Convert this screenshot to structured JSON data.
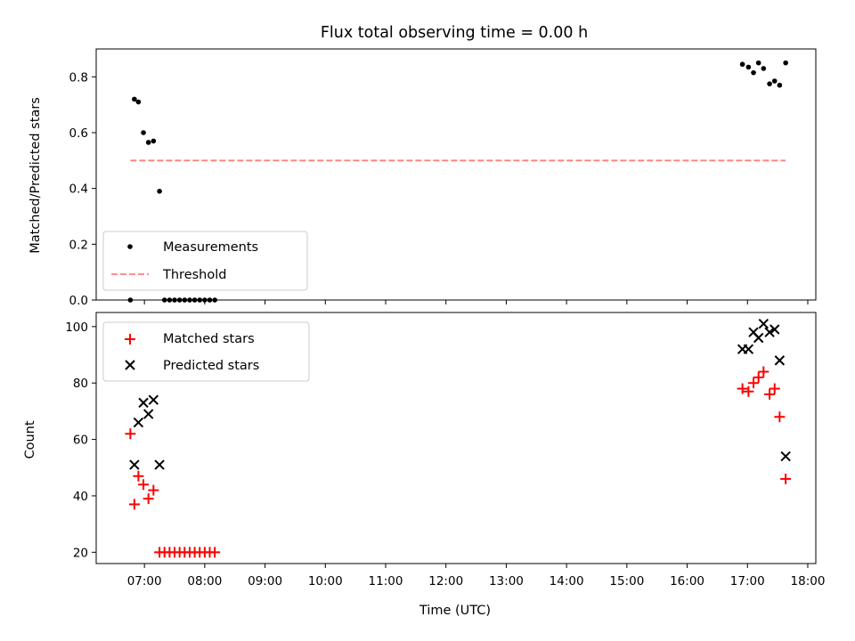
{
  "chart_data": [
    {
      "type": "scatter",
      "title": "Flux total observing time = 0.00 h",
      "ylabel": "Matched/Predicted stars",
      "xlabel": "",
      "xlim": [
        "06:12",
        "18:08"
      ],
      "ylim": [
        0,
        0.9
      ],
      "yticks": [
        0.0,
        0.2,
        0.4,
        0.6,
        0.8
      ],
      "ytick_labels": [
        "0.0",
        "0.2",
        "0.4",
        "0.6",
        "0.8"
      ],
      "legend_position": "lower-left",
      "series": [
        {
          "name": "Measurements",
          "marker": "dot",
          "color": "#000000",
          "points": [
            {
              "x": "06:46",
              "y": 0.0
            },
            {
              "x": "06:50",
              "y": 0.72
            },
            {
              "x": "06:54",
              "y": 0.71
            },
            {
              "x": "06:59",
              "y": 0.6
            },
            {
              "x": "07:04",
              "y": 0.565
            },
            {
              "x": "07:09",
              "y": 0.57
            },
            {
              "x": "07:15",
              "y": 0.39
            },
            {
              "x": "07:20",
              "y": 0.0
            },
            {
              "x": "07:25",
              "y": 0.0
            },
            {
              "x": "07:30",
              "y": 0.0
            },
            {
              "x": "07:35",
              "y": 0.0
            },
            {
              "x": "07:40",
              "y": 0.0
            },
            {
              "x": "07:45",
              "y": 0.0
            },
            {
              "x": "07:50",
              "y": 0.0
            },
            {
              "x": "07:55",
              "y": 0.0
            },
            {
              "x": "08:00",
              "y": 0.0
            },
            {
              "x": "08:05",
              "y": 0.0
            },
            {
              "x": "08:10",
              "y": 0.0
            },
            {
              "x": "16:55",
              "y": 0.845
            },
            {
              "x": "17:01",
              "y": 0.835
            },
            {
              "x": "17:06",
              "y": 0.815
            },
            {
              "x": "17:11",
              "y": 0.85
            },
            {
              "x": "17:16",
              "y": 0.83
            },
            {
              "x": "17:22",
              "y": 0.775
            },
            {
              "x": "17:27",
              "y": 0.785
            },
            {
              "x": "17:32",
              "y": 0.77
            },
            {
              "x": "17:38",
              "y": 0.85
            }
          ]
        },
        {
          "name": "Threshold",
          "marker": "dashed-line",
          "color": "#ff7f7f",
          "points": [
            {
              "x": "06:46",
              "y": 0.5
            },
            {
              "x": "17:38",
              "y": 0.5
            }
          ]
        }
      ]
    },
    {
      "type": "scatter",
      "title": "",
      "ylabel": "Count",
      "xlabel": "Time (UTC)",
      "xlim": [
        "06:12",
        "18:08"
      ],
      "ylim": [
        16,
        105
      ],
      "yticks": [
        20,
        40,
        60,
        80,
        100
      ],
      "ytick_labels": [
        "20",
        "40",
        "60",
        "80",
        "100"
      ],
      "xticks": [
        "07:00",
        "08:00",
        "09:00",
        "10:00",
        "11:00",
        "12:00",
        "13:00",
        "14:00",
        "15:00",
        "16:00",
        "17:00",
        "18:00"
      ],
      "xtick_labels": [
        "07:00",
        "08:00",
        "09:00",
        "10:00",
        "11:00",
        "12:00",
        "13:00",
        "14:00",
        "15:00",
        "16:00",
        "17:00",
        "18:00"
      ],
      "legend_position": "top-left",
      "series": [
        {
          "name": "Matched stars",
          "marker": "plus",
          "color": "#ff0000",
          "points": [
            {
              "x": "06:46",
              "y": 62
            },
            {
              "x": "06:50",
              "y": 37
            },
            {
              "x": "06:54",
              "y": 47
            },
            {
              "x": "06:59",
              "y": 44
            },
            {
              "x": "07:04",
              "y": 39
            },
            {
              "x": "07:09",
              "y": 42
            },
            {
              "x": "07:15",
              "y": 20
            },
            {
              "x": "07:20",
              "y": 20
            },
            {
              "x": "07:25",
              "y": 20
            },
            {
              "x": "07:30",
              "y": 20
            },
            {
              "x": "07:35",
              "y": 20
            },
            {
              "x": "07:40",
              "y": 20
            },
            {
              "x": "07:45",
              "y": 20
            },
            {
              "x": "07:50",
              "y": 20
            },
            {
              "x": "07:55",
              "y": 20
            },
            {
              "x": "08:00",
              "y": 20
            },
            {
              "x": "08:05",
              "y": 20
            },
            {
              "x": "08:10",
              "y": 20
            },
            {
              "x": "16:55",
              "y": 78
            },
            {
              "x": "17:01",
              "y": 77
            },
            {
              "x": "17:06",
              "y": 80
            },
            {
              "x": "17:11",
              "y": 82
            },
            {
              "x": "17:16",
              "y": 84
            },
            {
              "x": "17:22",
              "y": 76
            },
            {
              "x": "17:27",
              "y": 78
            },
            {
              "x": "17:32",
              "y": 68
            },
            {
              "x": "17:38",
              "y": 46
            }
          ]
        },
        {
          "name": "Predicted stars",
          "marker": "x",
          "color": "#000000",
          "points": [
            {
              "x": "06:50",
              "y": 51
            },
            {
              "x": "06:54",
              "y": 66
            },
            {
              "x": "06:59",
              "y": 73
            },
            {
              "x": "07:04",
              "y": 69
            },
            {
              "x": "07:09",
              "y": 74
            },
            {
              "x": "07:15",
              "y": 51
            },
            {
              "x": "16:55",
              "y": 92
            },
            {
              "x": "17:01",
              "y": 92
            },
            {
              "x": "17:06",
              "y": 98
            },
            {
              "x": "17:11",
              "y": 96
            },
            {
              "x": "17:16",
              "y": 101
            },
            {
              "x": "17:22",
              "y": 98
            },
            {
              "x": "17:27",
              "y": 99
            },
            {
              "x": "17:32",
              "y": 88
            },
            {
              "x": "17:38",
              "y": 54
            }
          ]
        }
      ]
    }
  ]
}
